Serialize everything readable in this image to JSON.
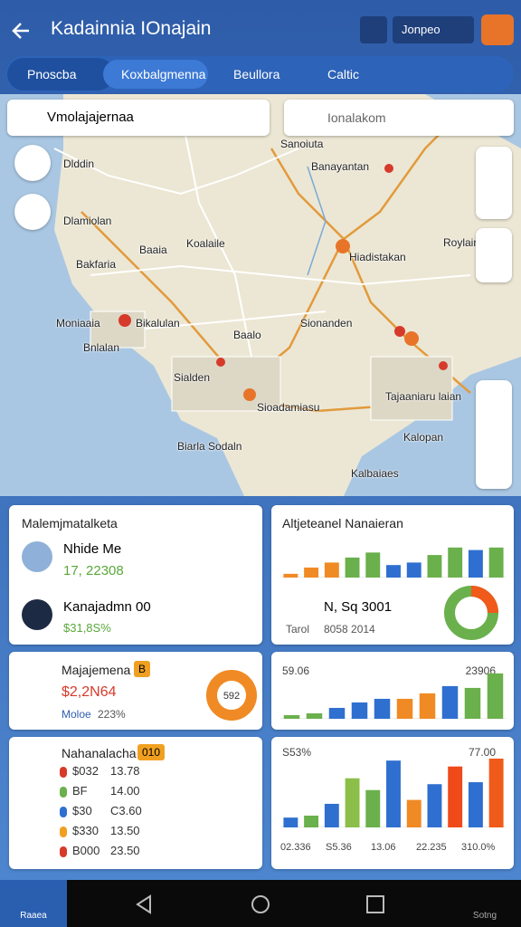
{
  "header": {
    "title": "Kadainnia IOnajain",
    "dropdown": "Jonpeo"
  },
  "tabs": [
    "Pnoscba",
    "Koxbalgmenna",
    "Beullora",
    "Caltic"
  ],
  "search": {
    "left": "Vmolajajernaa",
    "right": "Ionalakom"
  },
  "map_labels": [
    "Sanoiuta",
    "Banayantan",
    "Dlddin",
    "Dlamiolan",
    "Koalaile",
    "Bakfaria",
    "Hiadistakan",
    "Roylair",
    "Moniaaia",
    "Bikalulan",
    "Sionanden",
    "Sialden",
    "Sioadamiasu",
    "Tajaaniaru laian",
    "Kalopan",
    "Biarla Sodaln",
    "Kalbaiaes",
    "Baalo",
    "Bnlalan",
    "Baaia"
  ],
  "cards": [
    {
      "title": "Malemjmatalketa",
      "items": [
        {
          "name": "Nhide Me",
          "value": "17, 22308"
        },
        {
          "name": "Kanajadmn 00",
          "value": "$31,8S%"
        }
      ]
    },
    {
      "title": "Altjeteanel Nanaieran",
      "values": [
        3,
        8,
        12,
        16,
        20,
        10,
        12,
        18,
        24,
        22,
        24
      ],
      "colors": [
        "#f08a24",
        "#f08a24",
        "#f08a24",
        "#6ab04c",
        "#6ab04c",
        "#2f6fd0",
        "#2f6fd0",
        "#6ab04c",
        "#6ab04c",
        "#2f6fd0",
        "#6ab04c"
      ],
      "value": "N, Sq 3001",
      "label": "Tarol",
      "sub": "8058 2014",
      "donut": "22.7%"
    },
    {
      "title": "Majajemena",
      "badge": "B",
      "value": "$2,2N64",
      "sub_label": "Moloe",
      "sub": "223%",
      "donut": "592"
    },
    {
      "left": "59.06",
      "right": "23906",
      "values": [
        4,
        6,
        12,
        18,
        22,
        22,
        28,
        36,
        34,
        50
      ],
      "colors": [
        "#6ab04c",
        "#6ab04c",
        "#2f6fd0",
        "#2f6fd0",
        "#2f6fd0",
        "#f08a24",
        "#f08a24",
        "#2f6fd0",
        "#6ab04c",
        "#6ab04c"
      ]
    },
    {
      "title": "Nahanalacha",
      "badge": "010",
      "rows": [
        [
          "$032",
          "13.78"
        ],
        [
          "BF",
          "14.00"
        ],
        [
          "$30",
          "C3.60"
        ],
        [
          "$330",
          "13.50"
        ],
        [
          "B000",
          "23.50"
        ]
      ],
      "row_colors": [
        "#d63a2a",
        "#6ab04c",
        "#2f6fd0",
        "#f0a020",
        "#d63a2a"
      ]
    },
    {
      "left": "S53%",
      "right": "77.00",
      "values": [
        10,
        12,
        24,
        50,
        38,
        68,
        28,
        44,
        62,
        46,
        70
      ],
      "colors": [
        "#2f6fd0",
        "#6ab04c",
        "#2f6fd0",
        "#8bbf4a",
        "#6ab04c",
        "#2f6fd0",
        "#f08a24",
        "#2f6fd0",
        "#f04a1a",
        "#2f6fd0",
        "#f05a1a"
      ],
      "x_labels": [
        "02.336",
        "S5.36",
        "13.06",
        "22.235",
        "310.0%"
      ]
    }
  ],
  "nav": [
    "Raaea",
    "Sotng"
  ]
}
